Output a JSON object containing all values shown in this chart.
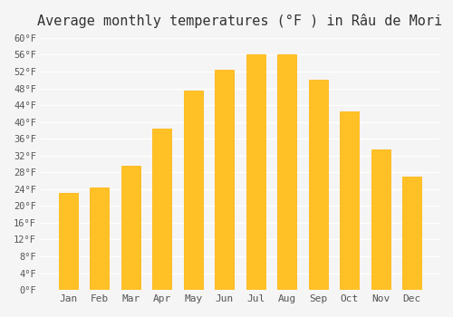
{
  "title": "Average monthly temperatures (°F ) in Râu de Mori",
  "months": [
    "Jan",
    "Feb",
    "Mar",
    "Apr",
    "May",
    "Jun",
    "Jul",
    "Aug",
    "Sep",
    "Oct",
    "Nov",
    "Dec"
  ],
  "values": [
    23,
    24.5,
    29.5,
    38.5,
    47.5,
    52.5,
    56,
    56,
    50,
    42.5,
    33.5,
    27
  ],
  "bar_color": "#FFC125",
  "bar_edge_color": "#FFB000",
  "background_color": "#F5F5F5",
  "grid_color": "#FFFFFF",
  "text_color": "#555555",
  "ylim": [
    0,
    60
  ],
  "ytick_step": 4,
  "title_fontsize": 11
}
